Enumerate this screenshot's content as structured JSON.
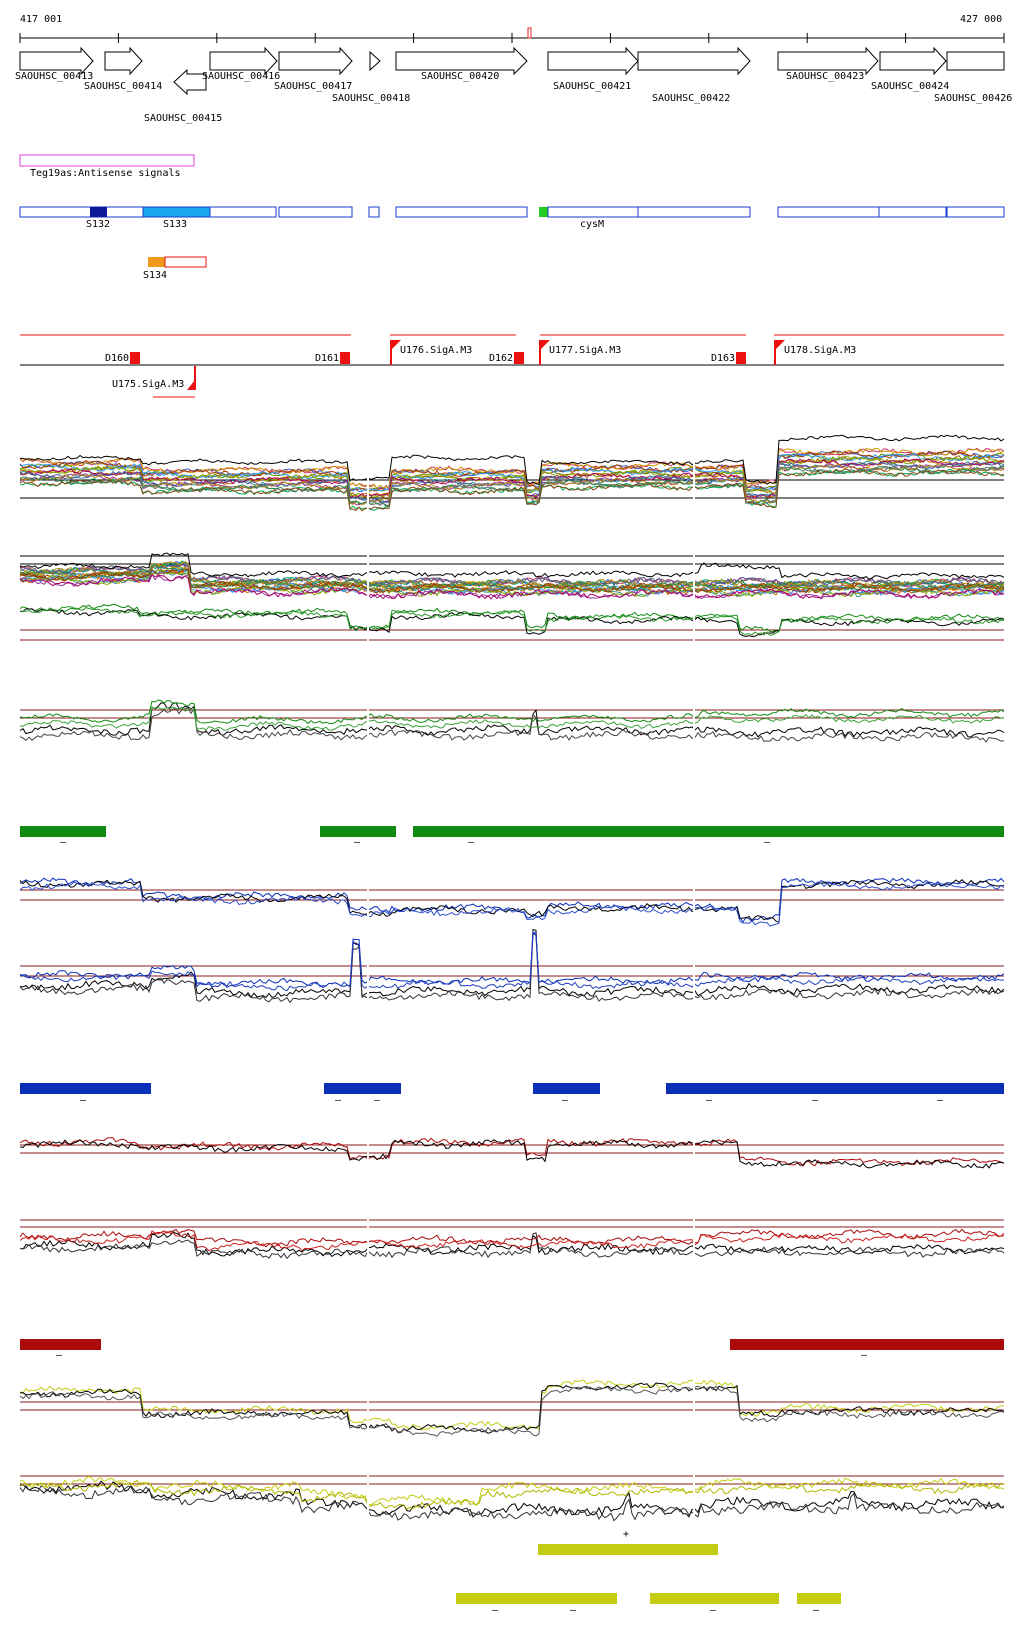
{
  "coords": {
    "start": "417 001",
    "end": "427 000"
  },
  "genes": [
    {
      "label": "SAOUHSC_00413",
      "strand": "+"
    },
    {
      "label": "SAOUHSC_00414",
      "strand": "+"
    },
    {
      "label": "SAOUHSC_00415",
      "strand": "-"
    },
    {
      "label": "SAOUHSC_00416",
      "strand": "+"
    },
    {
      "label": "SAOUHSC_00417",
      "strand": "+"
    },
    {
      "label": "SAOUHSC_00418",
      "strand": "+"
    },
    {
      "label": "SAOUHSC_00420",
      "strand": "+"
    },
    {
      "label": "SAOUHSC_00421",
      "strand": "+"
    },
    {
      "label": "SAOUHSC_00422",
      "strand": "+"
    },
    {
      "label": "SAOUHSC_00423",
      "strand": "+"
    },
    {
      "label": "SAOUHSC_00424",
      "strand": "+"
    },
    {
      "label": "SAOUHSC_00426",
      "strand": "+"
    }
  ],
  "antisense": {
    "label": "Teg19as:Antisense signals"
  },
  "segments": [
    "S132",
    "S133",
    "cysM",
    "S134"
  ],
  "downshifts": [
    "D160",
    "D161",
    "D162",
    "D163"
  ],
  "upshifts": [
    "U175.SigA.M3",
    "U176.SigA.M3",
    "U177.SigA.M3",
    "U178.SigA.M3"
  ],
  "marks": {
    "minus": "–",
    "plus": "+"
  },
  "colors": {
    "green": "#118a11",
    "blue": "#0a2fb8",
    "red": "#aa0a0a",
    "yellow": "#c4cc11",
    "threshold": "#8b1a1a",
    "gene_outline": "#1a3acc",
    "antisense": "#e040e0",
    "shift": "#ee1111",
    "s134_fill": "#f19a1a",
    "s132_fill": "#0c1a99",
    "s133_fill": "#1aa8f0",
    "cysm_fill": "#22cc22"
  }
}
